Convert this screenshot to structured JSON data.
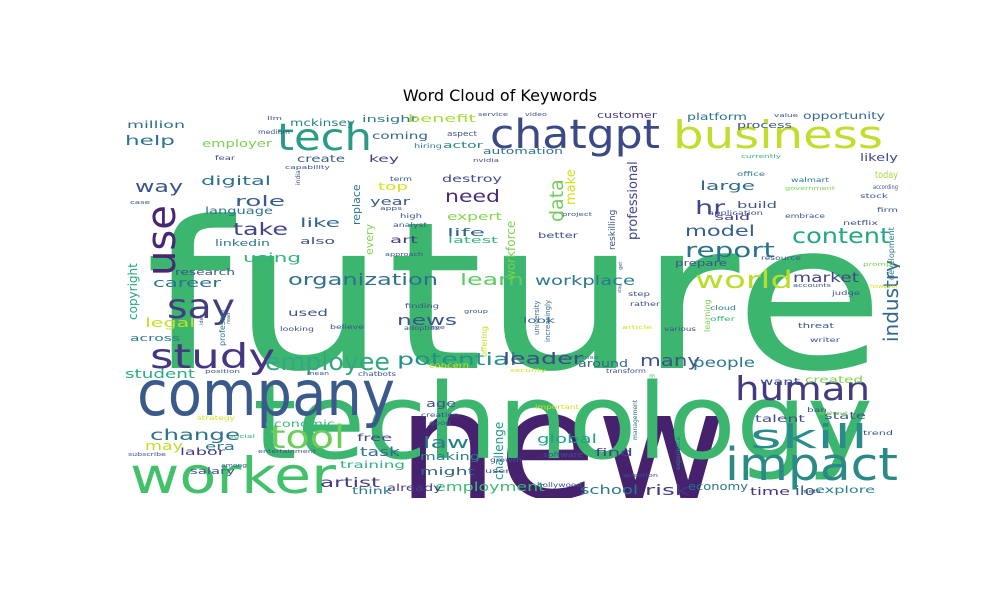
{
  "title": "Word Cloud of Keywords",
  "chart_data": {
    "type": "wordcloud",
    "title": "Word Cloud of Keywords",
    "colormap": "viridis",
    "background": "#ffffff",
    "words": [
      {
        "text": "future",
        "weight": 100,
        "color": "#3cb66e"
      },
      {
        "text": "new",
        "weight": 95,
        "color": "#46216e"
      },
      {
        "text": "technology",
        "weight": 80,
        "color": "#3cb66e"
      },
      {
        "text": "company",
        "weight": 55,
        "color": "#3b5a8c"
      },
      {
        "text": "worker",
        "weight": 45,
        "color": "#43c06a"
      },
      {
        "text": "impact",
        "weight": 42,
        "color": "#2a8a85"
      },
      {
        "text": "chatgpt",
        "weight": 40,
        "color": "#3b4a86"
      },
      {
        "text": "business",
        "weight": 38,
        "color": "#c4dc2c"
      },
      {
        "text": "tech",
        "weight": 36,
        "color": "#2a9b84"
      },
      {
        "text": "use",
        "weight": 35,
        "color": "#482575"
      },
      {
        "text": "say",
        "weight": 34,
        "color": "#433d80"
      },
      {
        "text": "study",
        "weight": 34,
        "color": "#453582"
      },
      {
        "text": "human",
        "weight": 34,
        "color": "#453a80"
      },
      {
        "text": "skill",
        "weight": 33,
        "color": "#2a8c8a"
      },
      {
        "text": "tool",
        "weight": 32,
        "color": "#6ccd5a"
      },
      {
        "text": "employee",
        "weight": 26,
        "color": "#33a685"
      },
      {
        "text": "world",
        "weight": 24,
        "color": "#b8de29"
      },
      {
        "text": "content",
        "weight": 20,
        "color": "#22a884"
      },
      {
        "text": "report",
        "weight": 20,
        "color": "#2c728e"
      },
      {
        "text": "industry",
        "weight": 20,
        "color": "#31688e"
      },
      {
        "text": "potential",
        "weight": 17,
        "color": "#22908b"
      },
      {
        "text": "data",
        "weight": 18,
        "color": "#6ece58"
      },
      {
        "text": "organization",
        "weight": 16,
        "color": "#2d708e"
      },
      {
        "text": "learn",
        "weight": 16,
        "color": "#5ec962"
      },
      {
        "text": "leader",
        "weight": 16,
        "color": "#3e4a89"
      },
      {
        "text": "many",
        "weight": 16,
        "color": "#3b528b"
      },
      {
        "text": "need",
        "weight": 16,
        "color": "#472c7a"
      },
      {
        "text": "take",
        "weight": 16,
        "color": "#414487"
      },
      {
        "text": "hr",
        "weight": 16,
        "color": "#3f4788"
      },
      {
        "text": "model",
        "weight": 14,
        "color": "#355f8d"
      },
      {
        "text": "way",
        "weight": 14,
        "color": "#3b528b"
      },
      {
        "text": "change",
        "weight": 14,
        "color": "#2c728e"
      },
      {
        "text": "law",
        "weight": 14,
        "color": "#287d8e"
      },
      {
        "text": "news",
        "weight": 13,
        "color": "#3a548c"
      },
      {
        "text": "role",
        "weight": 13,
        "color": "#365c8d"
      },
      {
        "text": "market",
        "weight": 12,
        "color": "#414487"
      },
      {
        "text": "workplace",
        "weight": 12,
        "color": "#2a788e"
      },
      {
        "text": "people",
        "weight": 11,
        "color": "#2a788e"
      },
      {
        "text": "risk",
        "weight": 12,
        "color": "#443983"
      },
      {
        "text": "artist",
        "weight": 12,
        "color": "#443a83"
      },
      {
        "text": "professional",
        "weight": 12,
        "color": "#404688"
      },
      {
        "text": "make",
        "weight": 11,
        "color": "#d0e11c"
      },
      {
        "text": "digital",
        "weight": 11,
        "color": "#2d708e"
      },
      {
        "text": "large",
        "weight": 11,
        "color": "#31688e"
      },
      {
        "text": "career",
        "weight": 11,
        "color": "#2c738e"
      },
      {
        "text": "using",
        "weight": 11,
        "color": "#2fb47c"
      },
      {
        "text": "legal",
        "weight": 11,
        "color": "#c2df23"
      },
      {
        "text": "help",
        "weight": 11,
        "color": "#2c728e"
      },
      {
        "text": "global",
        "weight": 10,
        "color": "#1fa187"
      },
      {
        "text": "task",
        "weight": 10,
        "color": "#2e6f8e"
      },
      {
        "text": "employment",
        "weight": 10,
        "color": "#3bbb75"
      },
      {
        "text": "like",
        "weight": 11,
        "color": "#32658e"
      },
      {
        "text": "workforce",
        "weight": 10,
        "color": "#7ad151"
      },
      {
        "text": "challenge",
        "weight": 10,
        "color": "#1f988b"
      },
      {
        "text": "copyright",
        "weight": 10,
        "color": "#21a685"
      },
      {
        "text": "student",
        "weight": 10,
        "color": "#27ad81"
      },
      {
        "text": "school",
        "weight": 10,
        "color": "#2a788e"
      },
      {
        "text": "economy",
        "weight": 9,
        "color": "#2a768e"
      },
      {
        "text": "time",
        "weight": 9,
        "color": "#46327e"
      },
      {
        "text": "explore",
        "weight": 9,
        "color": "#26828e"
      },
      {
        "text": "ilo",
        "weight": 10,
        "color": "#38588c"
      },
      {
        "text": "may",
        "weight": 10,
        "color": "#bddf26"
      },
      {
        "text": "era",
        "weight": 9,
        "color": "#2a788e"
      },
      {
        "text": "labor",
        "weight": 8,
        "color": "#453781"
      },
      {
        "text": "might",
        "weight": 9,
        "color": "#355f8d"
      },
      {
        "text": "making",
        "weight": 9,
        "color": "#26828e"
      },
      {
        "text": "free",
        "weight": 8,
        "color": "#3f4889"
      },
      {
        "text": "economic",
        "weight": 8,
        "color": "#35b779"
      },
      {
        "text": "training",
        "weight": 8,
        "color": "#2db27d"
      },
      {
        "text": "think",
        "weight": 8,
        "color": "#2a788e"
      },
      {
        "text": "already",
        "weight": 8,
        "color": "#433e85"
      },
      {
        "text": "talent",
        "weight": 8,
        "color": "#3e4a89"
      },
      {
        "text": "want",
        "weight": 8,
        "color": "#3e4a89"
      },
      {
        "text": "created",
        "weight": 8,
        "color": "#7fd34e"
      },
      {
        "text": "state",
        "weight": 8,
        "color": "#39568c"
      },
      {
        "text": "around",
        "weight": 9,
        "color": "#33638d"
      },
      {
        "text": "find",
        "weight": 9,
        "color": "#3f4788"
      },
      {
        "text": "age",
        "weight": 9,
        "color": "#3a548c"
      },
      {
        "text": "research",
        "weight": 8,
        "color": "#3b528b"
      },
      {
        "text": "salary",
        "weight": 8,
        "color": "#3b528b"
      },
      {
        "text": "across",
        "weight": 8,
        "color": "#2a788e"
      },
      {
        "text": "million",
        "weight": 8,
        "color": "#2d708e"
      },
      {
        "text": "mckinsey",
        "weight": 8,
        "color": "#26828e"
      },
      {
        "text": "insight",
        "weight": 8,
        "color": "#2a788e"
      },
      {
        "text": "benefit",
        "weight": 9,
        "color": "#a5db36"
      },
      {
        "text": "customer",
        "weight": 8,
        "color": "#46327e"
      },
      {
        "text": "platform",
        "weight": 9,
        "color": "#2c728e"
      },
      {
        "text": "opportunity",
        "weight": 9,
        "color": "#31688e"
      },
      {
        "text": "employer",
        "weight": 9,
        "color": "#7ad151"
      },
      {
        "text": "coming",
        "weight": 8,
        "color": "#31688e"
      },
      {
        "text": "actor",
        "weight": 8,
        "color": "#24868e"
      },
      {
        "text": "automation",
        "weight": 8,
        "color": "#2c728e"
      },
      {
        "text": "create",
        "weight": 8,
        "color": "#365c8d"
      },
      {
        "text": "key",
        "weight": 8,
        "color": "#433e85"
      },
      {
        "text": "top",
        "weight": 9,
        "color": "#d2e21b"
      },
      {
        "text": "year",
        "weight": 9,
        "color": "#38598c"
      },
      {
        "text": "destroy",
        "weight": 9,
        "color": "#3e4a89"
      },
      {
        "text": "expert",
        "weight": 9,
        "color": "#85d54a"
      },
      {
        "text": "life",
        "weight": 9,
        "color": "#32658e"
      },
      {
        "text": "latest",
        "weight": 8,
        "color": "#2fb47c"
      },
      {
        "text": "art",
        "weight": 9,
        "color": "#453882"
      },
      {
        "text": "every",
        "weight": 9,
        "color": "#81d34d"
      },
      {
        "text": "replace",
        "weight": 9,
        "color": "#2a788e"
      },
      {
        "text": "linkedin",
        "weight": 8,
        "color": "#2c738e"
      },
      {
        "text": "also",
        "weight": 8,
        "color": "#3e4989"
      },
      {
        "text": "language",
        "weight": 8,
        "color": "#2c728e"
      },
      {
        "text": "used",
        "weight": 8,
        "color": "#3b528b"
      },
      {
        "text": "likely",
        "weight": 9,
        "color": "#3e4989"
      },
      {
        "text": "today",
        "weight": 9,
        "color": "#9fda3a"
      },
      {
        "text": "process",
        "weight": 8,
        "color": "#3b528b"
      },
      {
        "text": "build",
        "weight": 8,
        "color": "#3b528b"
      },
      {
        "text": "said",
        "weight": 8,
        "color": "#453882"
      },
      {
        "text": "better",
        "weight": 7,
        "color": "#3b528b"
      },
      {
        "text": "prepare",
        "weight": 8,
        "color": "#3b528b"
      },
      {
        "text": "reskilling",
        "weight": 8,
        "color": "#3b528b"
      },
      {
        "text": "development",
        "weight": 8,
        "color": "#2a788e"
      },
      {
        "text": "professor",
        "weight": 7,
        "color": "#2a788e"
      },
      {
        "text": "look",
        "weight": 7,
        "color": "#31688e"
      },
      {
        "text": "offering",
        "weight": 7,
        "color": "#c7e020"
      },
      {
        "text": "university",
        "weight": 6,
        "color": "#31688e"
      },
      {
        "text": "increasingly",
        "weight": 6,
        "color": "#31688e"
      },
      {
        "text": "learning",
        "weight": 6,
        "color": "#7ad151"
      },
      {
        "text": "management",
        "weight": 5,
        "color": "#2c728e"
      },
      {
        "text": "engineering",
        "weight": 5,
        "color": "#35b779"
      },
      {
        "text": "experience",
        "weight": 5,
        "color": "#2a788e"
      },
      {
        "text": "hollywood",
        "weight": 5,
        "color": "#3b528b"
      },
      {
        "text": "software",
        "weight": 5,
        "color": "#3b528b"
      },
      {
        "text": "growth",
        "weight": 5,
        "color": "#3b528b"
      },
      {
        "text": "user",
        "weight": 5,
        "color": "#3b528b"
      },
      {
        "text": "meta",
        "weight": 5,
        "color": "#3b528b"
      },
      {
        "text": "ban",
        "weight": 5,
        "color": "#3b528b"
      },
      {
        "text": "without",
        "weight": 4,
        "color": "#7ad151"
      },
      {
        "text": "trend",
        "weight": 5,
        "color": "#3b528b"
      },
      {
        "text": "threat",
        "weight": 6,
        "color": "#3b528b"
      },
      {
        "text": "writer",
        "weight": 5,
        "color": "#3b528b"
      },
      {
        "text": "judge",
        "weight": 5,
        "color": "#3b528b"
      },
      {
        "text": "accounts",
        "weight": 4,
        "color": "#3b528b"
      },
      {
        "text": "however",
        "weight": 4,
        "color": "#d2e21b"
      },
      {
        "text": "prompt",
        "weight": 4,
        "color": "#7ad151"
      },
      {
        "text": "firm",
        "weight": 5,
        "color": "#3b528b"
      },
      {
        "text": "netflix",
        "weight": 5,
        "color": "#3b528b"
      },
      {
        "text": "stock",
        "weight": 5,
        "color": "#3b528b"
      },
      {
        "text": "according",
        "weight": 5,
        "color": "#3b528b"
      },
      {
        "text": "walmart",
        "weight": 5,
        "color": "#2a788e"
      },
      {
        "text": "government",
        "weight": 5,
        "color": "#7ad151"
      },
      {
        "text": "embrace",
        "weight": 5,
        "color": "#3b528b"
      },
      {
        "text": "application",
        "weight": 5,
        "color": "#3b528b"
      },
      {
        "text": "office",
        "weight": 5,
        "color": "#2a788e"
      },
      {
        "text": "currently",
        "weight": 4,
        "color": "#35b779"
      },
      {
        "text": "value",
        "weight": 4,
        "color": "#3b528b"
      },
      {
        "text": "resource",
        "weight": 5,
        "color": "#3b528b"
      },
      {
        "text": "cloud",
        "weight": 5,
        "color": "#2a788e"
      },
      {
        "text": "offer",
        "weight": 5,
        "color": "#35b779"
      },
      {
        "text": "various",
        "weight": 5,
        "color": "#3b528b"
      },
      {
        "text": "article",
        "weight": 4,
        "color": "#d2e21b"
      },
      {
        "text": "step",
        "weight": 5,
        "color": "#3b528b"
      },
      {
        "text": "rather",
        "weight": 5,
        "color": "#3b528b"
      },
      {
        "text": "stay",
        "weight": 4,
        "color": "#3b528b"
      },
      {
        "text": "project",
        "weight": 4,
        "color": "#3b528b"
      },
      {
        "text": "get",
        "weight": 4,
        "color": "#3b528b"
      },
      {
        "text": "promise",
        "weight": 4,
        "color": "#2a788e"
      },
      {
        "text": "transform",
        "weight": 5,
        "color": "#3b528b"
      },
      {
        "text": "question",
        "weight": 4,
        "color": "#3b528b"
      },
      {
        "text": "important",
        "weight": 4,
        "color": "#d2e21b"
      },
      {
        "text": "security",
        "weight": 4,
        "color": "#d2e21b"
      },
      {
        "text": "concern",
        "weight": 6,
        "color": "#d2e21b"
      },
      {
        "text": "group",
        "weight": 4,
        "color": "#3b528b"
      },
      {
        "text": "adoption",
        "weight": 5,
        "color": "#3b528b"
      },
      {
        "text": "finding",
        "weight": 5,
        "color": "#3b528b"
      },
      {
        "text": "believe",
        "weight": 5,
        "color": "#3b528b"
      },
      {
        "text": "looking",
        "weight": 5,
        "color": "#3b528b"
      },
      {
        "text": "creation",
        "weight": 5,
        "color": "#3b528b"
      },
      {
        "text": "good",
        "weight": 5,
        "color": "#3b528b"
      },
      {
        "text": "mean",
        "weight": 4,
        "color": "#3b528b"
      },
      {
        "text": "chatbots",
        "weight": 5,
        "color": "#3b528b"
      },
      {
        "text": "position",
        "weight": 4,
        "color": "#3b528b"
      },
      {
        "text": "strategy",
        "weight": 4,
        "color": "#d2e21b"
      },
      {
        "text": "social",
        "weight": 4,
        "color": "#35b779"
      },
      {
        "text": "subscribe",
        "weight": 4,
        "color": "#3b528b"
      },
      {
        "text": "entertainment",
        "weight": 4,
        "color": "#3b528b"
      },
      {
        "text": "among",
        "weight": 4,
        "color": "#3b528b"
      },
      {
        "text": "eye",
        "weight": 4,
        "color": "#3b528b"
      },
      {
        "text": "read",
        "weight": 4,
        "color": "#3b528b"
      },
      {
        "text": "idea",
        "weight": 4,
        "color": "#3b528b"
      },
      {
        "text": "case",
        "weight": 4,
        "color": "#3b528b"
      },
      {
        "text": "fear",
        "weight": 5,
        "color": "#3b528b"
      },
      {
        "text": "medium",
        "weight": 5,
        "color": "#3b528b"
      },
      {
        "text": "capability",
        "weight": 4,
        "color": "#3b528b"
      },
      {
        "text": "llm",
        "weight": 4,
        "color": "#3b528b"
      },
      {
        "text": "hiring",
        "weight": 5,
        "color": "#2a788e"
      },
      {
        "text": "term",
        "weight": 5,
        "color": "#3b528b"
      },
      {
        "text": "apps",
        "weight": 4,
        "color": "#3b528b"
      },
      {
        "text": "high",
        "weight": 5,
        "color": "#3b528b"
      },
      {
        "text": "analyst",
        "weight": 5,
        "color": "#3b528b"
      },
      {
        "text": "india",
        "weight": 5,
        "color": "#3b528b"
      },
      {
        "text": "approach",
        "weight": 4,
        "color": "#3b528b"
      },
      {
        "text": "nvidia",
        "weight": 4,
        "color": "#3b528b"
      },
      {
        "text": "service",
        "weight": 4,
        "color": "#3b528b"
      },
      {
        "text": "video",
        "weight": 4,
        "color": "#3b528b"
      },
      {
        "text": "aspect",
        "weight": 5,
        "color": "#3b528b"
      }
    ]
  }
}
